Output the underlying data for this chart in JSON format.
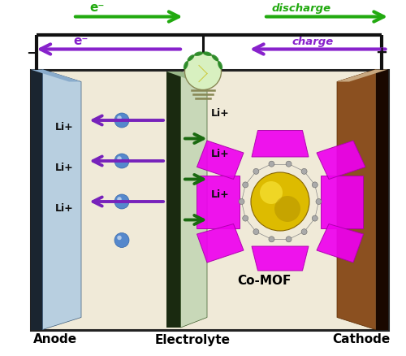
{
  "fig_width": 5.0,
  "fig_height": 4.38,
  "dpi": 100,
  "bg_color": "#ffffff",
  "battery_bg": "#f0ead8",
  "anode_color_light": "#b8cfe0",
  "anode_color_dark": "#1a2a3a",
  "cathode_color_light": "#c8a080",
  "cathode_color_mid": "#8B5020",
  "cathode_color_dark": "#3a1a00",
  "elec_color_dark": "#1a2a10",
  "elec_color_mid": "#3a5a28",
  "elec_color_light": "#c8d8b8",
  "wire_color": "#111111",
  "discharge_arrow_color": "#22aa10",
  "charge_arrow_color": "#8822cc",
  "li_left_arrow_color": "#7722bb",
  "li_right_arrow_color": "#1a6a10",
  "li_dot_color": "#5588cc",
  "mof_magenta": "#ee00ee",
  "mof_magenta_dark": "#aa00aa",
  "mof_yellow": "#ddbb00",
  "mof_yellow_light": "#ffee44",
  "mof_yellow_dark": "#aa8800",
  "anode_label": "Anode",
  "cathode_label": "Cathode",
  "electrolyte_label": "Electrolyte",
  "comof_label": "Co-MOF",
  "discharge_label": "discharge",
  "charge_label": "charge",
  "e_discharge": "e⁻",
  "e_charge": "e⁻",
  "minus_sign": "−",
  "plus_sign": "+"
}
